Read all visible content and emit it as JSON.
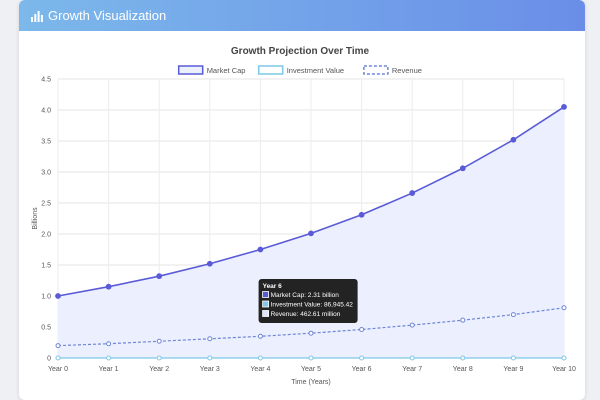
{
  "header": {
    "title": "Growth Visualization",
    "icon": "bar-chart-icon"
  },
  "chart_data": {
    "type": "line",
    "title": "Growth Projection Over Time",
    "xlabel": "Time (Years)",
    "ylabel": "Billions",
    "categories": [
      "Year 0",
      "Year 1",
      "Year 2",
      "Year 3",
      "Year 4",
      "Year 5",
      "Year 6",
      "Year 7",
      "Year 8",
      "Year 9",
      "Year 10"
    ],
    "ylim": [
      0,
      4.5
    ],
    "yticks": [
      "0",
      "0.5",
      "1.0",
      "1.5",
      "2.0",
      "2.5",
      "3.0",
      "3.5",
      "4.0",
      "4.5"
    ],
    "grid": true,
    "legend_position": "top",
    "series": [
      {
        "name": "Market Cap",
        "values": [
          1.0,
          1.15,
          1.32,
          1.52,
          1.75,
          2.01,
          2.31,
          2.66,
          3.06,
          3.52,
          4.05
        ],
        "color": "#5a5bd6",
        "fill": "#eceffd",
        "style": "solid"
      },
      {
        "name": "Investment Value",
        "values": [
          0,
          0,
          0,
          0,
          0,
          0,
          0,
          0,
          0,
          0,
          0
        ],
        "color": "#7ec8e8",
        "style": "solid"
      },
      {
        "name": "Revenue",
        "values": [
          0.2,
          0.23,
          0.27,
          0.31,
          0.35,
          0.4,
          0.46,
          0.53,
          0.61,
          0.7,
          0.81
        ],
        "color": "#6e86d8",
        "style": "dashed"
      }
    ],
    "tooltip": {
      "title": "Year 6",
      "lines": [
        "Market Cap: 2.31 billion",
        "Investment Value: 86,945.42",
        "Revenue: 462.61 million"
      ],
      "index": 6
    }
  }
}
